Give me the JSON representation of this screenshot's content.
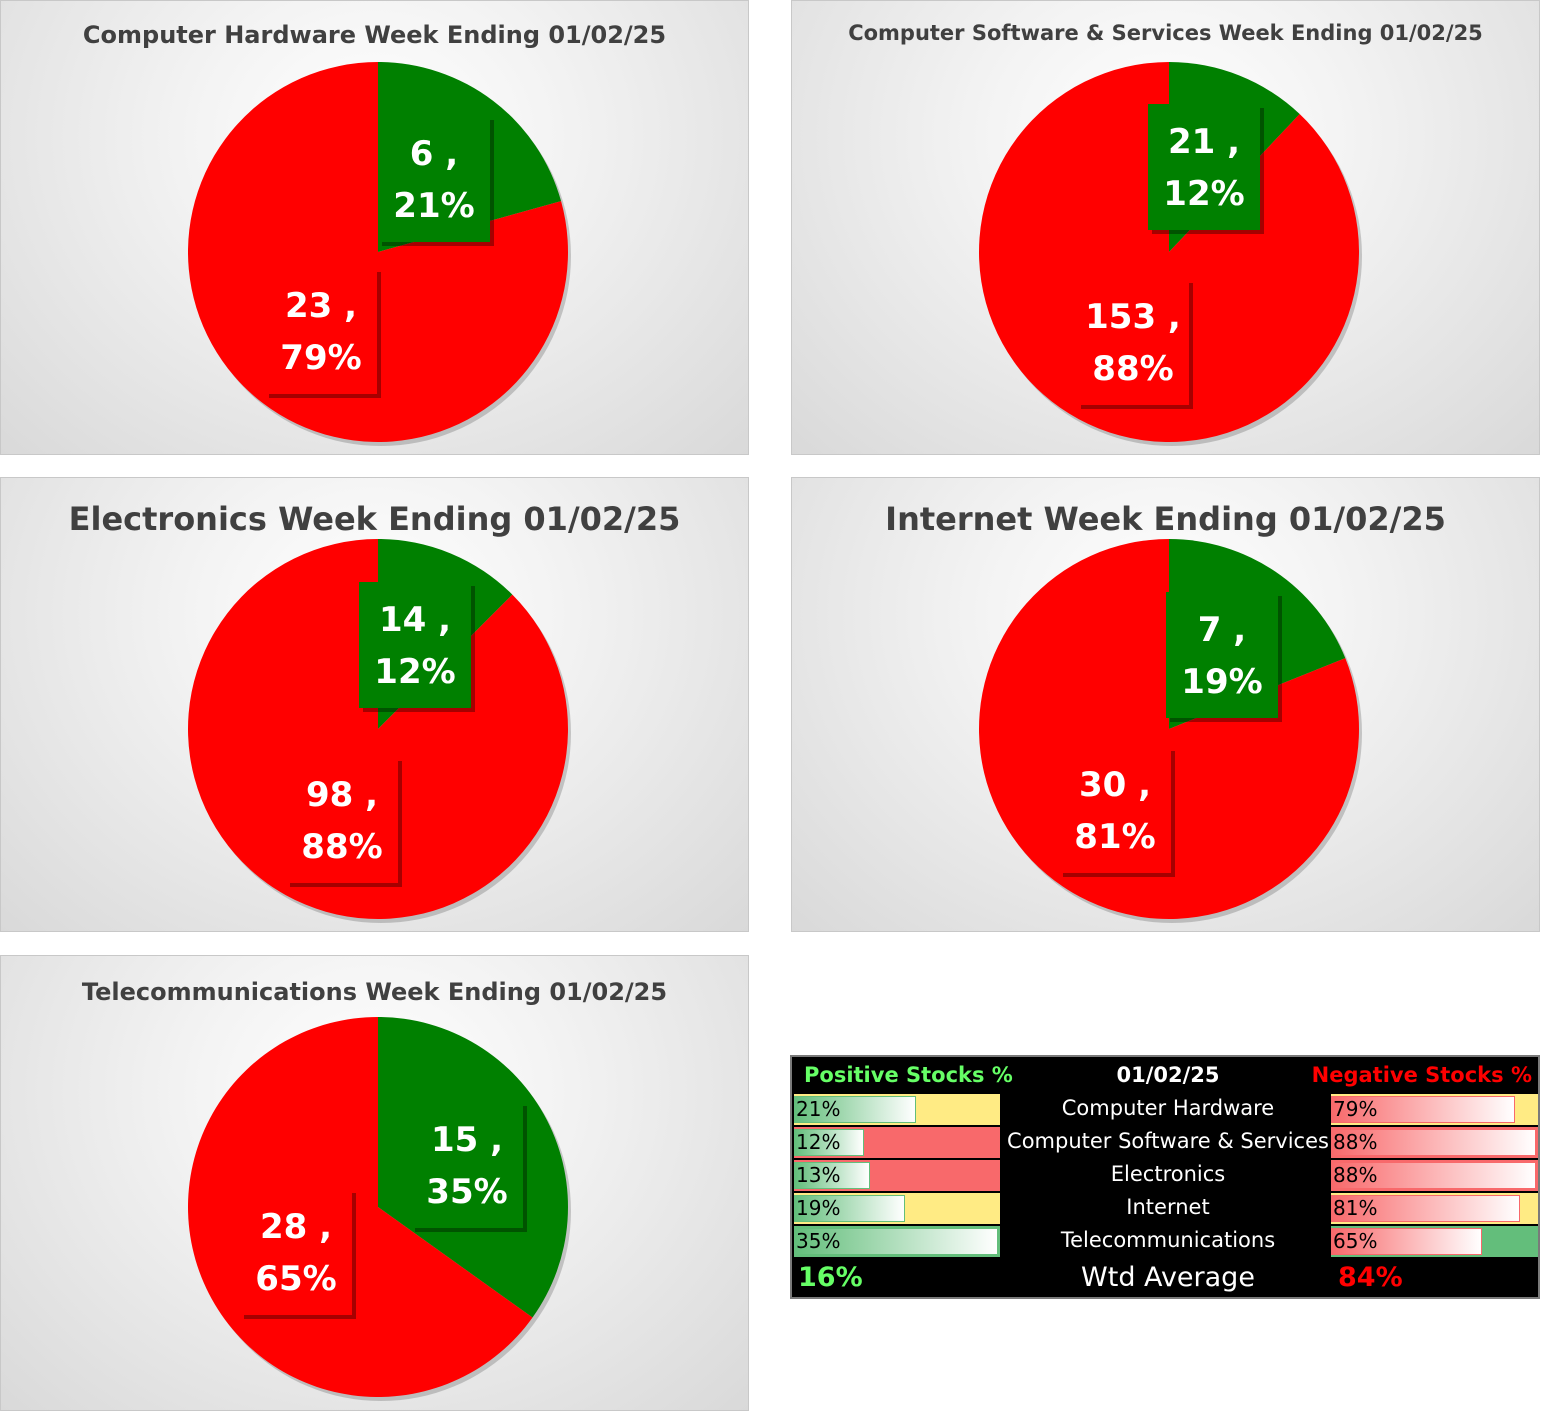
{
  "chart_data": [
    {
      "type": "pie",
      "title": "Computer Hardware Week Ending 01/02/25",
      "slices": [
        {
          "count": 6,
          "percent": 21,
          "color": "#008000",
          "label_line1": "6 ,",
          "label_line2": "21%"
        },
        {
          "count": 23,
          "percent": 79,
          "color": "#ff0000",
          "label_line1": "23 ,",
          "label_line2": "79%"
        }
      ]
    },
    {
      "type": "pie",
      "title": "Computer Software & Services Week Ending 01/02/25",
      "slices": [
        {
          "count": 21,
          "percent": 12,
          "color": "#008000",
          "label_line1": "21 ,",
          "label_line2": "12%"
        },
        {
          "count": 153,
          "percent": 88,
          "color": "#ff0000",
          "label_line1": "153 ,",
          "label_line2": "88%"
        }
      ]
    },
    {
      "type": "pie",
      "title": "Electronics Week Ending 01/02/25",
      "slices": [
        {
          "count": 14,
          "percent": 12,
          "color": "#008000",
          "label_line1": "14 ,",
          "label_line2": "12%"
        },
        {
          "count": 98,
          "percent": 88,
          "color": "#ff0000",
          "label_line1": "98 ,",
          "label_line2": "88%"
        }
      ]
    },
    {
      "type": "pie",
      "title": "Internet Week Ending 01/02/25",
      "slices": [
        {
          "count": 7,
          "percent": 19,
          "color": "#008000",
          "label_line1": "7 ,",
          "label_line2": "19%"
        },
        {
          "count": 30,
          "percent": 81,
          "color": "#ff0000",
          "label_line1": "30 ,",
          "label_line2": "81%"
        }
      ]
    },
    {
      "type": "pie",
      "title": "Telecommunications Week Ending 01/02/25",
      "slices": [
        {
          "count": 15,
          "percent": 35,
          "color": "#008000",
          "label_line1": "15 ,",
          "label_line2": "35%"
        },
        {
          "count": 28,
          "percent": 65,
          "color": "#ff0000",
          "label_line1": "28 ,",
          "label_line2": "65%"
        }
      ]
    }
  ],
  "summary": {
    "positive_header": "Positive Stocks %",
    "date_header": "01/02/25",
    "negative_header": "Negative Stocks %",
    "rows": [
      {
        "category": "Computer Hardware",
        "positive": "21%",
        "positive_value": 0.21,
        "positive_bg": "#ffeb84",
        "negative": "79%",
        "negative_value": 0.79,
        "negative_bg": "#ffeb84"
      },
      {
        "category": "Computer Software & Services",
        "positive": "12%",
        "positive_value": 0.12,
        "positive_bg": "#f8696b",
        "negative": "88%",
        "negative_value": 0.88,
        "negative_bg": "#f8696b"
      },
      {
        "category": "Electronics",
        "positive": "13%",
        "positive_value": 0.13,
        "positive_bg": "#f8696b",
        "negative": "88%",
        "negative_value": 0.88,
        "negative_bg": "#f8696b"
      },
      {
        "category": "Internet",
        "positive": "19%",
        "positive_value": 0.19,
        "positive_bg": "#ffeb84",
        "negative": "81%",
        "negative_value": 0.81,
        "negative_bg": "#ffeb84"
      },
      {
        "category": "Telecommunications",
        "positive": "35%",
        "positive_value": 0.35,
        "positive_bg": "#63be7b",
        "negative": "65%",
        "negative_value": 0.65,
        "negative_bg": "#63be7b"
      }
    ],
    "avg_label": "Wtd Average",
    "avg_positive": "16%",
    "avg_negative": "84%",
    "positive_color": "#66ff66",
    "negative_color": "#ff0000"
  }
}
